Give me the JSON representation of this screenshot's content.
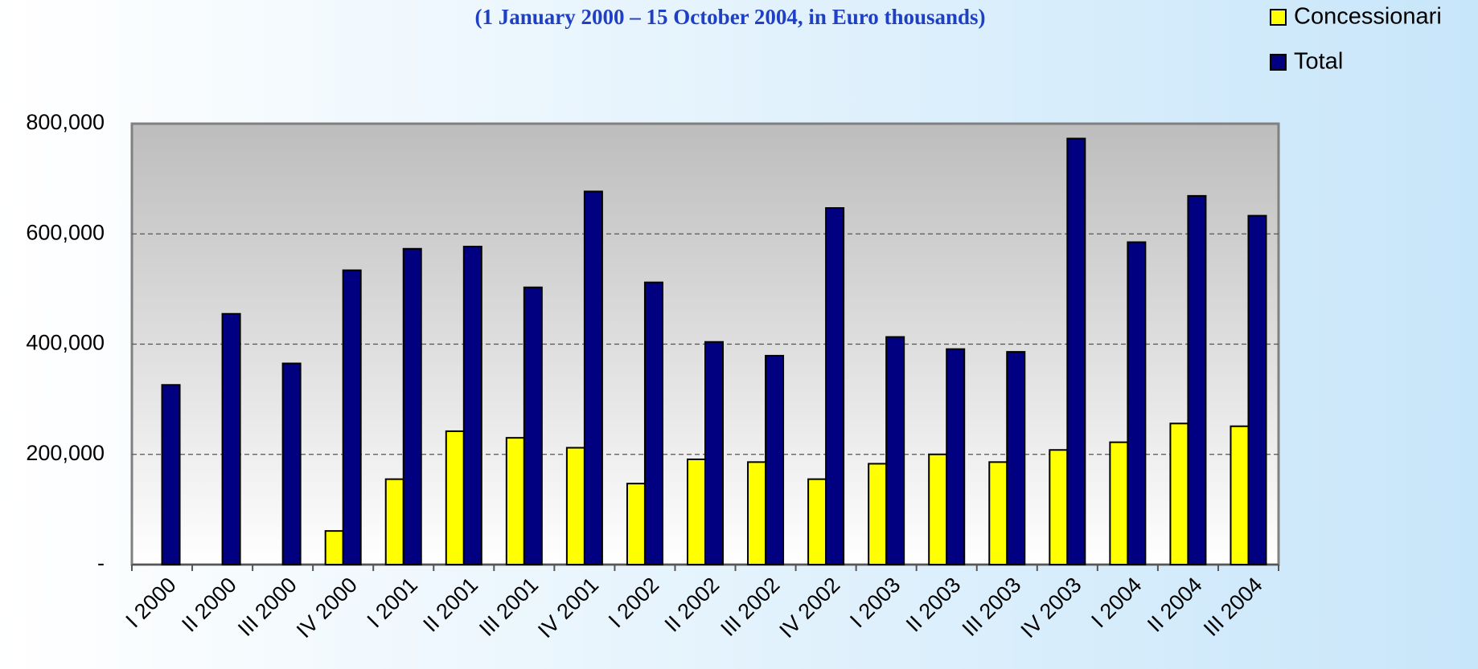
{
  "chart_data": {
    "type": "bar",
    "title": "(1 January 2000 – 15 October 2004, in Euro thousands)",
    "categories": [
      "I 2000",
      "II 2000",
      "III 2000",
      "IV 2000",
      "I 2001",
      "II 2001",
      "III 2001",
      "IV 2001",
      "I 2002",
      "II 2002",
      "III 2002",
      "IV 2002",
      "I 2003",
      "II 2003",
      "III 2003",
      "IV 2003",
      "I 2004",
      "II 2004",
      "III 2004"
    ],
    "series": [
      {
        "name": "Concessionari",
        "color": "#ffff00",
        "values": [
          null,
          null,
          null,
          61000,
          155000,
          242000,
          230000,
          212000,
          147000,
          191000,
          186000,
          155000,
          183000,
          200000,
          186000,
          208000,
          222000,
          256000,
          251000
        ]
      },
      {
        "name": "Total",
        "color": "#000080",
        "values": [
          326000,
          455000,
          365000,
          534000,
          573000,
          577000,
          503000,
          677000,
          512000,
          404000,
          379000,
          647000,
          413000,
          391000,
          386000,
          773000,
          585000,
          669000,
          633000
        ]
      }
    ],
    "ylim": [
      0,
      800000
    ],
    "yticks": [
      {
        "value": 0,
        "label": "-"
      },
      {
        "value": 200000,
        "label": "200,000"
      },
      {
        "value": 400000,
        "label": "400,000"
      },
      {
        "value": 600000,
        "label": "600,000"
      },
      {
        "value": 800000,
        "label": "800,000"
      }
    ],
    "grid": true,
    "legend": "top-right"
  }
}
